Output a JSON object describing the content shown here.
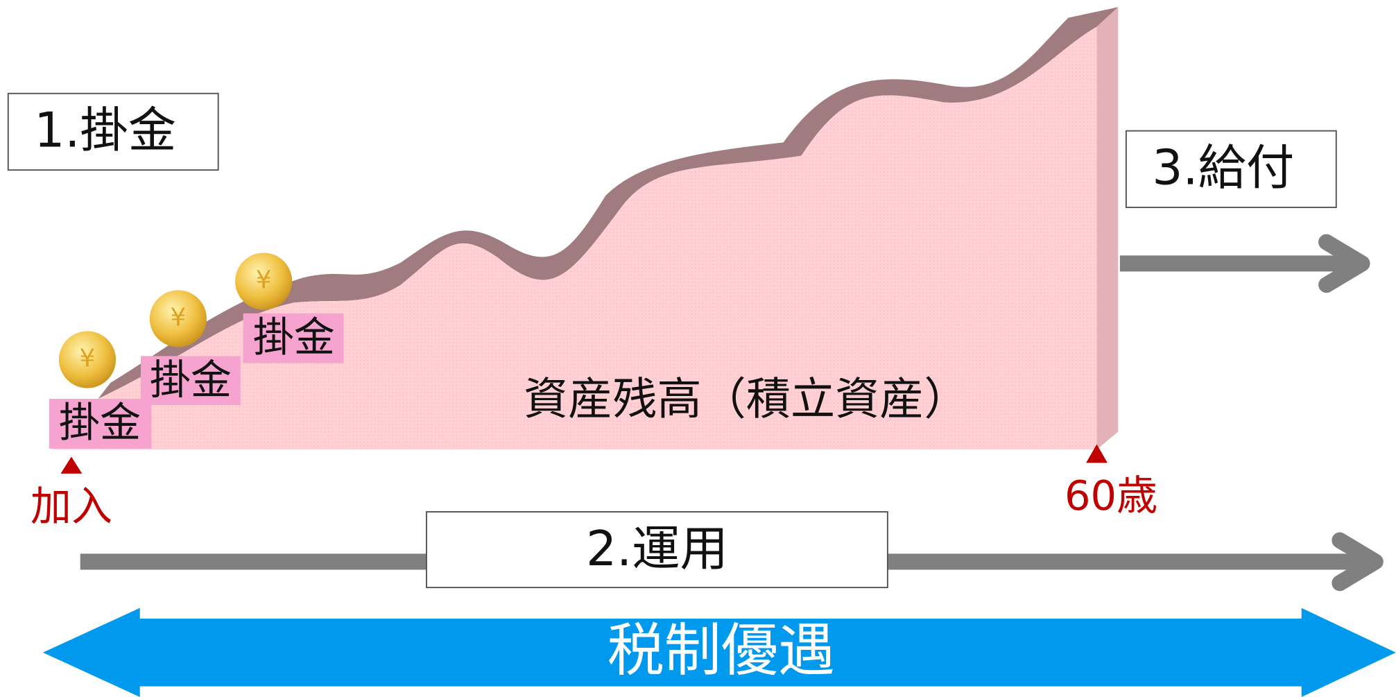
{
  "boxes": {
    "contribution": "1.掛金",
    "operation": "2.運用",
    "benefit": "3.給付"
  },
  "area_label": "資産残高（積立資産）",
  "start_label": "加入",
  "end_label": "60歳",
  "tax_label": "税制優遇",
  "coin_symbol": "¥",
  "coin_labels": [
    "掛金",
    "掛金",
    "掛金"
  ]
}
